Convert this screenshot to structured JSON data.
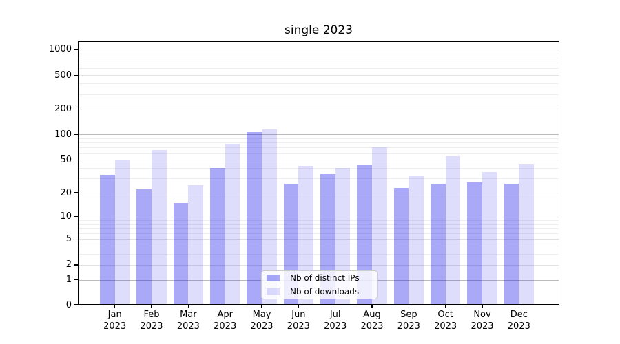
{
  "title": "single 2023",
  "colors": {
    "ip_bar": "rgba(18,18,234,0.36)",
    "dl_bar": "rgba(18,18,234,0.14)",
    "grid_major": "#bbbbbb",
    "grid_mid": "#e2e2e2",
    "grid_minor": "#efefef",
    "axis": "#000000",
    "legend_border": "#cccccc"
  },
  "legend": {
    "items": [
      {
        "label": "Nb of distinct IPs",
        "series": "ips"
      },
      {
        "label": "Nb of downloads",
        "series": "downloads"
      }
    ]
  },
  "y_axis": {
    "tick_labels": [
      "1000",
      "500",
      "200",
      "100",
      "50",
      "20",
      "10",
      "5",
      "2",
      "1",
      "0"
    ],
    "tick_values": [
      1000,
      500,
      200,
      100,
      50,
      20,
      10,
      5,
      2,
      1,
      0
    ]
  },
  "x_axis": {
    "months": [
      "Jan",
      "Feb",
      "Mar",
      "Apr",
      "May",
      "Jun",
      "Jul",
      "Aug",
      "Sep",
      "Oct",
      "Nov",
      "Dec"
    ],
    "year": "2023"
  },
  "chart_data": {
    "type": "bar",
    "title": "single 2023",
    "categories": [
      "Jan 2023",
      "Feb 2023",
      "Mar 2023",
      "Apr 2023",
      "May 2023",
      "Jun 2023",
      "Jul 2023",
      "Aug 2023",
      "Sep 2023",
      "Oct 2023",
      "Nov 2023",
      "Dec 2023"
    ],
    "series": [
      {
        "name": "Nb of distinct IPs",
        "values": [
          33,
          22,
          15,
          40,
          106,
          26,
          34,
          43,
          23,
          26,
          27,
          26
        ]
      },
      {
        "name": "Nb of downloads",
        "values": [
          50,
          65,
          25,
          78,
          115,
          42,
          40,
          70,
          32,
          55,
          36,
          44
        ]
      }
    ],
    "xlabel": "",
    "ylabel": "",
    "yscale": "log(1+x)",
    "ylim": [
      0,
      1300
    ],
    "yticks": [
      0,
      1,
      2,
      5,
      10,
      20,
      50,
      100,
      200,
      500,
      1000
    ],
    "grid": true,
    "legend_position": "lower center"
  }
}
